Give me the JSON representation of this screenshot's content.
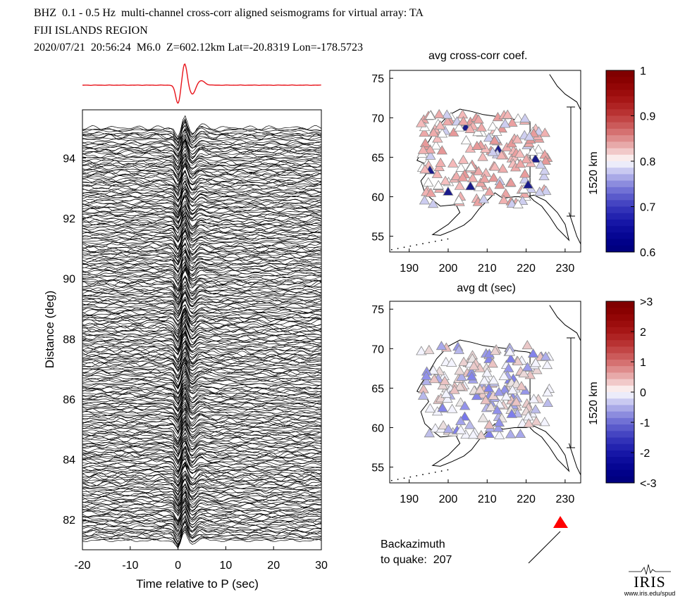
{
  "header": {
    "line1": "BHZ  0.1 - 0.5 Hz  multi-channel cross-corr aligned seismograms for virtual array: TA",
    "line2": "FIJI ISLANDS REGION",
    "line3": "2020/07/21  20:56:24  M6.0  Z=602.12km Lat=-20.8319 Lon=-178.5723"
  },
  "panel_labels": {
    "map1_title": "avg cross-corr coef.",
    "map2_title": "avg dt (sec)",
    "scale_bar_label": "1520 km"
  },
  "backazimuth": {
    "line1": "Backazimuth",
    "line2_label": "to quake:",
    "value": "207"
  },
  "logo": {
    "text": "IRIS",
    "url_text": "www.iris.edu/spud"
  },
  "colors": {
    "beam": "#e8141b",
    "trace": "#000000",
    "arrow_marker": "#ff0000"
  },
  "chart_data": [
    {
      "type": "line",
      "xlabel": "Time relative to P (sec)",
      "ylabel": "Distance (deg)",
      "xlim": [
        -20,
        30
      ],
      "ylim": [
        81,
        95.6
      ],
      "x_ticks": [
        "-20",
        "-10",
        "0",
        "10",
        "20",
        "30"
      ],
      "y_ticks": [
        "82",
        "84",
        "86",
        "88",
        "90",
        "92",
        "94"
      ],
      "beam_trace": "red stacked beam above section",
      "trace_count_approx": 300
    },
    {
      "type": "scatter",
      "map": "Alaska",
      "x_ticks": [
        "190",
        "200",
        "210",
        "220",
        "230"
      ],
      "y_ticks": [
        "55",
        "60",
        "65",
        "70",
        "75"
      ],
      "xlim": [
        185,
        234
      ],
      "ylim": [
        53,
        76
      ],
      "colorbar": {
        "ticks": [
          "1",
          "0.9",
          "0.8",
          "0.7",
          "0.6"
        ],
        "range": [
          0.6,
          1.0
        ]
      }
    },
    {
      "type": "scatter",
      "map": "Alaska",
      "x_ticks": [
        "190",
        "200",
        "210",
        "220",
        "230"
      ],
      "y_ticks": [
        "55",
        "60",
        "65",
        "70",
        "75"
      ],
      "xlim": [
        185,
        234
      ],
      "ylim": [
        53,
        76
      ],
      "colorbar": {
        "ticks": [
          ">3",
          "2",
          "1",
          "0",
          "-1",
          "-2",
          "<-3"
        ],
        "range": [
          -3,
          3
        ]
      }
    }
  ]
}
